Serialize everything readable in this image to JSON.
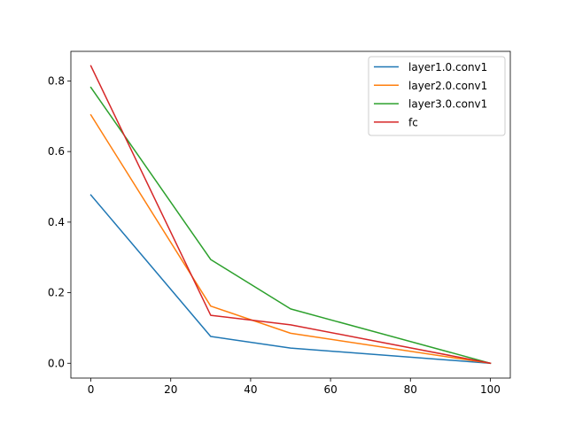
{
  "chart_data": {
    "type": "line",
    "title": "",
    "xlabel": "",
    "ylabel": "",
    "xlim": [
      -5,
      105
    ],
    "ylim": [
      -0.042,
      0.884
    ],
    "xticks": [
      0,
      20,
      40,
      60,
      80,
      100
    ],
    "xtick_labels": [
      "0",
      "20",
      "40",
      "60",
      "80",
      "100"
    ],
    "yticks": [
      0.0,
      0.2,
      0.4,
      0.6,
      0.8
    ],
    "ytick_labels": [
      "0.0",
      "0.2",
      "0.4",
      "0.6",
      "0.8"
    ],
    "grid": false,
    "legend_position": "top-right",
    "x": [
      0,
      30,
      50,
      100
    ],
    "series": [
      {
        "name": "layer1.0.conv1",
        "color": "#1f77b4",
        "values": [
          0.477,
          0.076,
          0.043,
          0.0
        ]
      },
      {
        "name": "layer2.0.conv1",
        "color": "#ff7f0e",
        "values": [
          0.704,
          0.162,
          0.085,
          0.0
        ]
      },
      {
        "name": "layer3.0.conv1",
        "color": "#2ca02c",
        "values": [
          0.782,
          0.294,
          0.154,
          0.0
        ]
      },
      {
        "name": "fc",
        "color": "#d62728",
        "values": [
          0.843,
          0.136,
          0.109,
          0.0
        ]
      }
    ]
  }
}
